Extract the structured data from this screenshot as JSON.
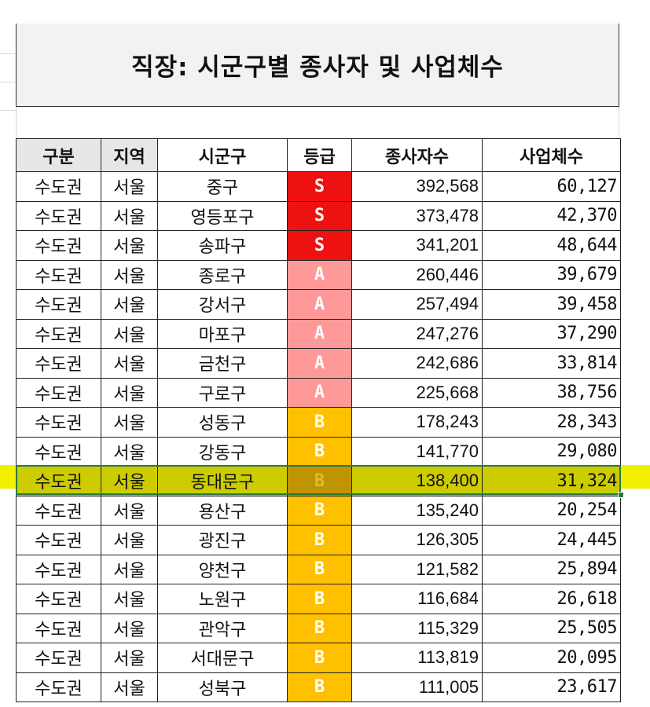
{
  "title": "직장: 시군구별 종사자 및 사업체수",
  "headers": {
    "gubun": "구분",
    "region": "지역",
    "sigungu": "시군구",
    "grade": "등급",
    "workers": "종사자수",
    "businesses": "사업체수"
  },
  "grade_colors": {
    "S": "#ee1111",
    "A": "#ff9999",
    "B": "#ffc000"
  },
  "highlight_color": "#cccc00",
  "rows": [
    {
      "gubun": "수도권",
      "region": "서울",
      "sigungu": "중구",
      "grade": "S",
      "workers": "392,568",
      "businesses": "60,127"
    },
    {
      "gubun": "수도권",
      "region": "서울",
      "sigungu": "영등포구",
      "grade": "S",
      "workers": "373,478",
      "businesses": "42,370"
    },
    {
      "gubun": "수도권",
      "region": "서울",
      "sigungu": "송파구",
      "grade": "S",
      "workers": "341,201",
      "businesses": "48,644"
    },
    {
      "gubun": "수도권",
      "region": "서울",
      "sigungu": "종로구",
      "grade": "A",
      "workers": "260,446",
      "businesses": "39,679"
    },
    {
      "gubun": "수도권",
      "region": "서울",
      "sigungu": "강서구",
      "grade": "A",
      "workers": "257,494",
      "businesses": "39,458"
    },
    {
      "gubun": "수도권",
      "region": "서울",
      "sigungu": "마포구",
      "grade": "A",
      "workers": "247,276",
      "businesses": "37,290"
    },
    {
      "gubun": "수도권",
      "region": "서울",
      "sigungu": "금천구",
      "grade": "A",
      "workers": "242,686",
      "businesses": "33,814"
    },
    {
      "gubun": "수도권",
      "region": "서울",
      "sigungu": "구로구",
      "grade": "A",
      "workers": "225,668",
      "businesses": "38,756"
    },
    {
      "gubun": "수도권",
      "region": "서울",
      "sigungu": "성동구",
      "grade": "B",
      "workers": "178,243",
      "businesses": "28,343"
    },
    {
      "gubun": "수도권",
      "region": "서울",
      "sigungu": "강동구",
      "grade": "B",
      "workers": "141,770",
      "businesses": "29,080"
    },
    {
      "gubun": "수도권",
      "region": "서울",
      "sigungu": "동대문구",
      "grade": "B",
      "workers": "138,400",
      "businesses": "31,324",
      "selected": true
    },
    {
      "gubun": "수도권",
      "region": "서울",
      "sigungu": "용산구",
      "grade": "B",
      "workers": "135,240",
      "businesses": "20,254"
    },
    {
      "gubun": "수도권",
      "region": "서울",
      "sigungu": "광진구",
      "grade": "B",
      "workers": "126,305",
      "businesses": "24,445"
    },
    {
      "gubun": "수도권",
      "region": "서울",
      "sigungu": "양천구",
      "grade": "B",
      "workers": "121,582",
      "businesses": "25,894"
    },
    {
      "gubun": "수도권",
      "region": "서울",
      "sigungu": "노원구",
      "grade": "B",
      "workers": "116,684",
      "businesses": "26,618"
    },
    {
      "gubun": "수도권",
      "region": "서울",
      "sigungu": "관악구",
      "grade": "B",
      "workers": "115,329",
      "businesses": "25,505"
    },
    {
      "gubun": "수도권",
      "region": "서울",
      "sigungu": "서대문구",
      "grade": "B",
      "workers": "113,819",
      "businesses": "20,095"
    },
    {
      "gubun": "수도권",
      "region": "서울",
      "sigungu": "성북구",
      "grade": "B",
      "workers": "111,005",
      "businesses": "23,617"
    }
  ]
}
